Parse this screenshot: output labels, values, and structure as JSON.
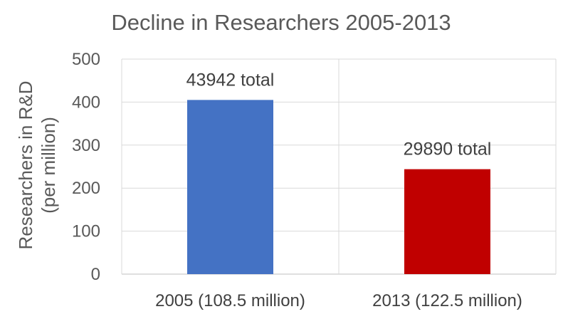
{
  "chart_data": {
    "type": "bar",
    "title": "Decline in Researchers 2005-2013",
    "ylabel_lines": [
      "Researchers in R&D",
      "(per million)"
    ],
    "categories": [
      "2005 (108.5 million)",
      "2013 (122.5 million)"
    ],
    "values": [
      405,
      244
    ],
    "data_labels": [
      "43942 total",
      "29890 total"
    ],
    "bar_colors": [
      "#4472C4",
      "#C00000"
    ],
    "ylim": [
      0,
      500
    ],
    "yticks": [
      0,
      100,
      200,
      300,
      400,
      500
    ],
    "grid": true,
    "legend": "none"
  }
}
